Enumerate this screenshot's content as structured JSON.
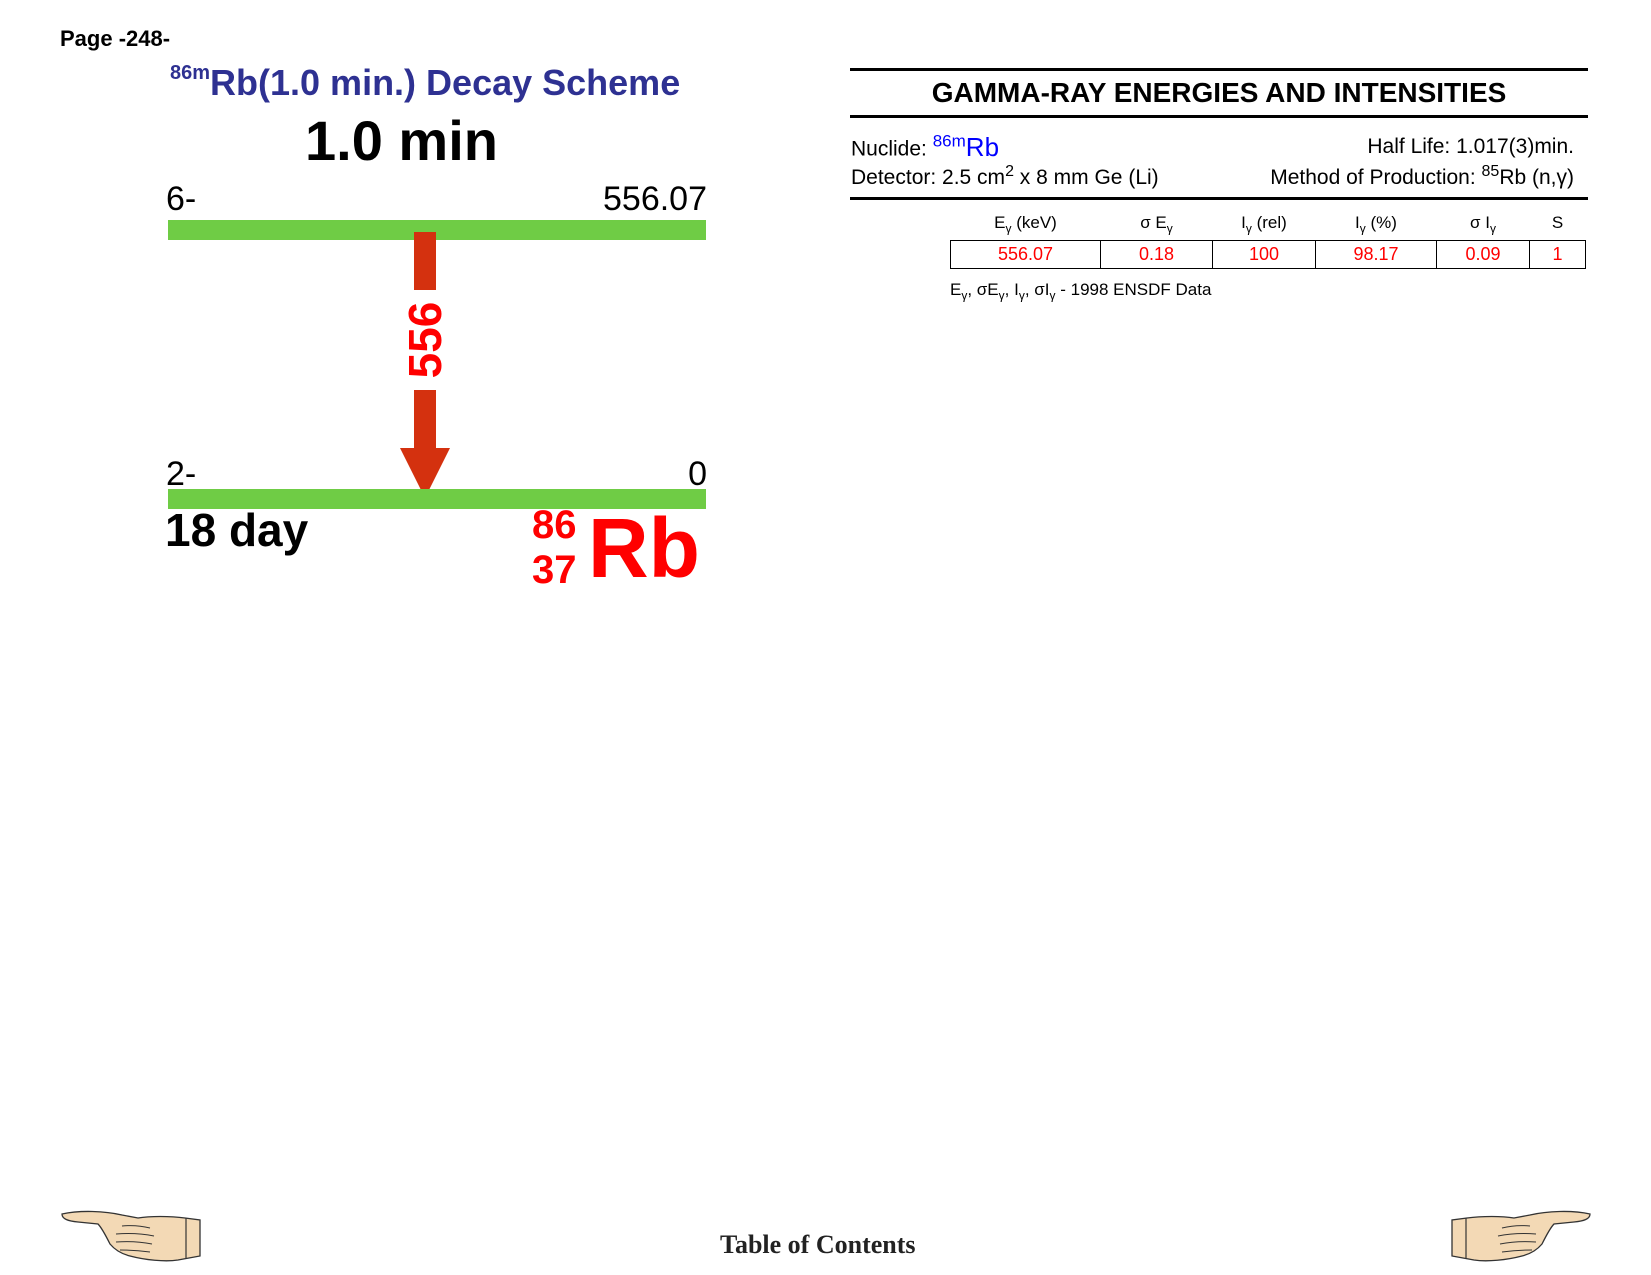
{
  "page": {
    "number_label": "Page -248-"
  },
  "decay_scheme": {
    "title_mass": "86m",
    "title_text": "Rb(1.0 min.) Decay Scheme",
    "parent_half_life": "1.0 min",
    "parent_level": {
      "spin": "6-",
      "energy": "556.07"
    },
    "daughter_level": {
      "spin": "2-",
      "energy": "0"
    },
    "gamma_label": "556",
    "daughter_half_life": "18 day",
    "daughter_nuclide": {
      "mass": "86",
      "z": "37",
      "symbol": "Rb"
    },
    "colors": {
      "level": "#6fcc45",
      "arrow": "#d4310f",
      "title": "#2e3192",
      "nuclide": "#ff0000"
    }
  },
  "gamma_table": {
    "title": "GAMMA-RAY ENERGIES AND INTENSITIES",
    "nuclide_label": "Nuclide:",
    "nuclide_mass": "86m",
    "nuclide_symbol": "Rb",
    "half_life": "Half Life: 1.017(3)min.",
    "detector_pre": "Detector: 2.5 cm",
    "detector_sup": "2",
    "detector_post": " x 8 mm Ge (Li)",
    "production_pre": "Method of Production: ",
    "production_sup": "85",
    "production_post": "Rb (n,γ)",
    "columns": [
      {
        "main": "E",
        "sub": "γ",
        "suffix": " (keV)"
      },
      {
        "main": "σ E",
        "sub": "γ",
        "suffix": ""
      },
      {
        "main": "I",
        "sub": "γ",
        "suffix": " (rel)"
      },
      {
        "main": "I",
        "sub": "γ",
        "suffix": " (%)"
      },
      {
        "main": "σ I",
        "sub": "γ",
        "suffix": ""
      },
      {
        "main": "S",
        "sub": "",
        "suffix": ""
      }
    ],
    "rows": [
      [
        "556.07",
        "0.18",
        "100",
        "98.17",
        "0.09",
        "1"
      ]
    ],
    "source_note": {
      "e": "E",
      "se": "σE",
      "i": "I",
      "si": "σI",
      "g": "γ",
      "sep": ", ",
      "dash": " - ",
      "text": "1998 ENSDF Data"
    }
  },
  "footer": {
    "toc_label": "Table of Contents",
    "prev_icon": "hand-pointing-left-icon",
    "next_icon": "hand-pointing-right-icon"
  }
}
